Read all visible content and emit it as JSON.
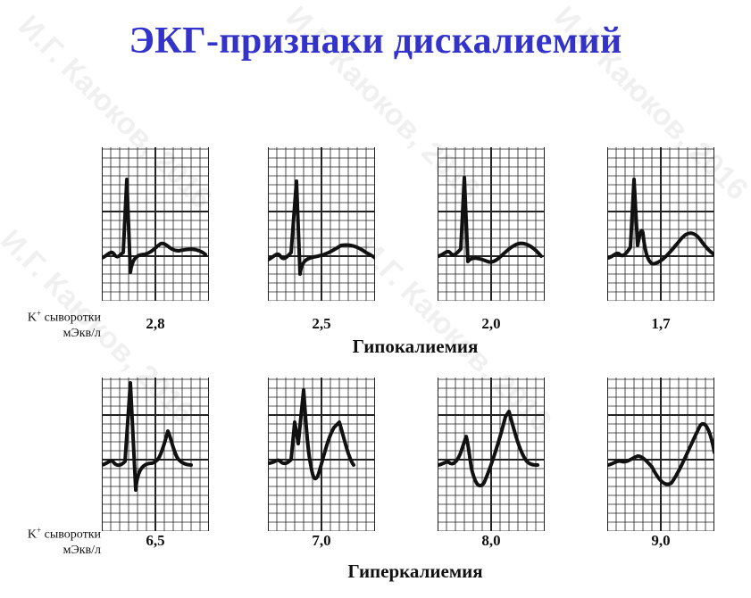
{
  "title": "ЭКГ-признаки дискалиемий",
  "k_label": {
    "line1_base": "K",
    "line1_sup": "+",
    "line1_rest": " сыворотки",
    "line2": "мЭкв/л"
  },
  "hypokalemia": {
    "label": "Гипокалиемия",
    "panels": [
      {
        "value": "2,8"
      },
      {
        "value": "2,5"
      },
      {
        "value": "2,0"
      },
      {
        "value": "1,7"
      }
    ]
  },
  "hyperkalemia": {
    "label": "Гиперкалиемия",
    "panels": [
      {
        "value": "6,5"
      },
      {
        "value": "7,0"
      },
      {
        "value": "8,0"
      },
      {
        "value": "9,0"
      }
    ]
  },
  "watermark": "И.Г. Каюков, 2016",
  "colors": {
    "title": "#3333cc",
    "trace": "#111111",
    "grid": "#222222"
  }
}
